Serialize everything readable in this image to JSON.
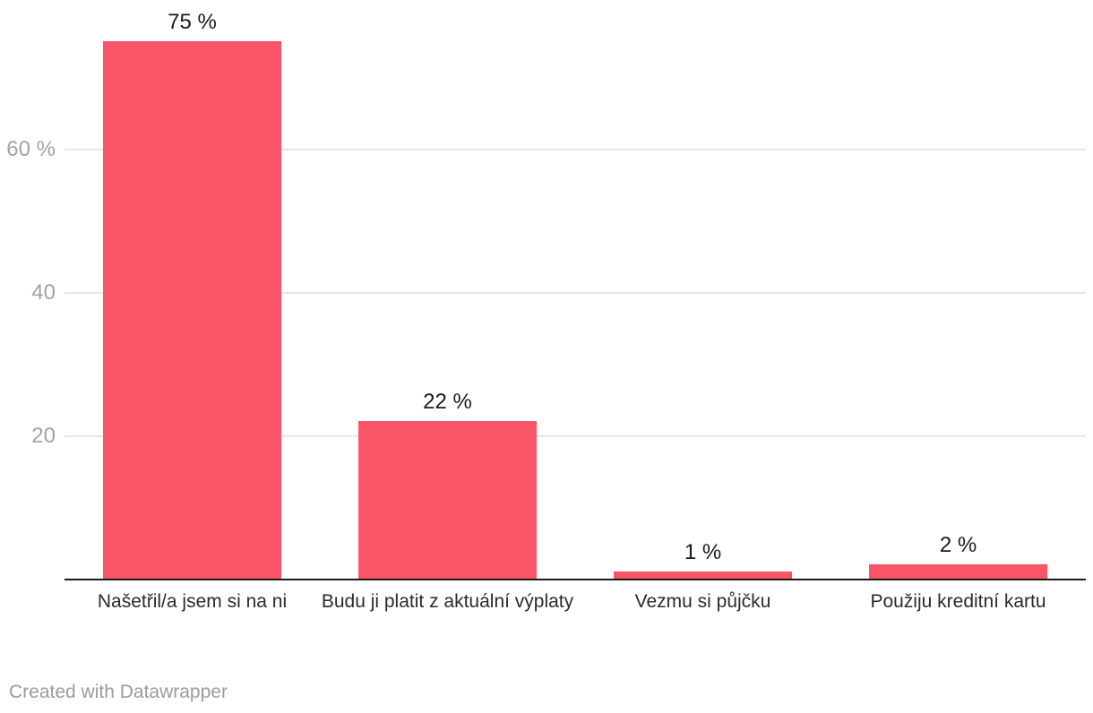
{
  "chart_data": {
    "type": "bar",
    "title": "",
    "xlabel": "",
    "ylabel": "",
    "categories": [
      "Našetřil/a jsem si na ni",
      "Budu ji platit z aktuální výplaty",
      "Vezmu si půjčku",
      "Použiju kreditní kartu"
    ],
    "values": [
      75,
      22,
      1,
      2
    ],
    "value_labels": [
      "75 %",
      "22 %",
      "1 %",
      "2 %"
    ],
    "yticks": [
      {
        "value": 20,
        "label": "20"
      },
      {
        "value": 40,
        "label": "40"
      },
      {
        "value": 60,
        "label": "60 %"
      }
    ],
    "ylim": [
      0,
      80
    ],
    "grid": true,
    "legend": "none",
    "colors": {
      "bar": "#f85569",
      "gridline": "#e6e6e6",
      "axis_line": "#1a1a1a",
      "tick_label": "#a3a3a3",
      "value_label": "#1a1a1a",
      "category_label": "#2b2b2b",
      "credit": "#9b9b9b"
    }
  },
  "footer": {
    "credit": "Created with Datawrapper"
  }
}
